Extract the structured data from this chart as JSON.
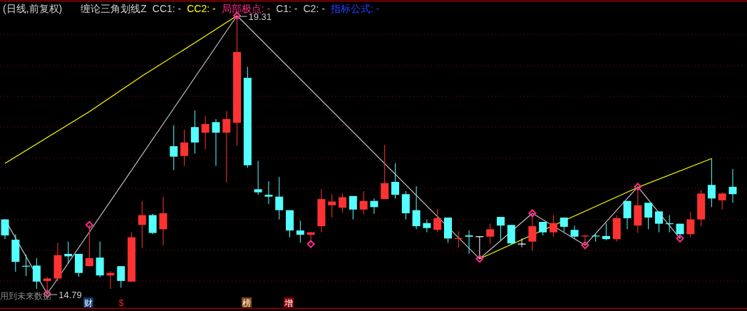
{
  "chart_data": {
    "type": "candlestick",
    "title": "(日线,前复权)",
    "categories": [
      null,
      null,
      null,
      null,
      null,
      null,
      null,
      null,
      null,
      null,
      null,
      null,
      null,
      null,
      null,
      null,
      null,
      null,
      null,
      null,
      null,
      null,
      null,
      null,
      null,
      null,
      null,
      null,
      null,
      null,
      null,
      null,
      null,
      null,
      null,
      null,
      null,
      null,
      null,
      null,
      null,
      null,
      null,
      null,
      null,
      null,
      null,
      null,
      null,
      null,
      null,
      null,
      null,
      null,
      null,
      null,
      null,
      null,
      null,
      null,
      null,
      null,
      null,
      null,
      null,
      null,
      null,
      null,
      null,
      null
    ],
    "ohlc": [
      [
        16.0,
        16.0,
        15.68,
        15.74
      ],
      [
        15.67,
        15.76,
        15.15,
        15.31
      ],
      [
        15.24,
        15.43,
        15.08,
        15.24
      ],
      [
        15.25,
        15.37,
        14.87,
        14.99
      ],
      [
        15.0,
        15.07,
        14.79,
        15.04
      ],
      [
        15.04,
        15.62,
        14.99,
        15.42
      ],
      [
        15.44,
        15.64,
        15.28,
        15.4
      ],
      [
        15.44,
        15.44,
        15.07,
        15.13
      ],
      [
        15.24,
        15.91,
        15.24,
        15.37
      ],
      [
        15.38,
        15.64,
        15.06,
        15.09
      ],
      [
        15.09,
        15.16,
        14.87,
        15.13
      ],
      [
        15.24,
        15.24,
        14.89,
        15.0
      ],
      [
        14.99,
        15.79,
        14.99,
        15.71
      ],
      [
        15.91,
        16.3,
        15.54,
        16.07
      ],
      [
        16.07,
        16.09,
        15.76,
        15.78
      ],
      [
        15.84,
        16.37,
        15.58,
        16.1
      ],
      [
        17.19,
        17.53,
        16.8,
        17.02
      ],
      [
        17.03,
        17.46,
        16.87,
        17.25
      ],
      [
        17.5,
        17.77,
        17.07,
        17.25
      ],
      [
        17.41,
        17.68,
        17.14,
        17.55
      ],
      [
        17.58,
        17.63,
        16.87,
        17.41
      ],
      [
        17.41,
        17.76,
        16.6,
        17.63
      ],
      [
        17.57,
        19.31,
        17.2,
        18.72
      ],
      [
        18.3,
        18.48,
        16.84,
        16.88
      ],
      [
        16.49,
        16.95,
        16.4,
        16.44
      ],
      [
        16.4,
        16.62,
        16.25,
        16.37
      ],
      [
        16.37,
        16.69,
        16.0,
        16.15
      ],
      [
        16.15,
        16.15,
        15.71,
        15.82
      ],
      [
        15.82,
        15.98,
        15.62,
        15.75
      ],
      [
        15.75,
        15.8,
        15.6,
        15.79
      ],
      [
        15.89,
        16.49,
        15.79,
        16.33
      ],
      [
        16.23,
        16.41,
        16.03,
        16.29
      ],
      [
        16.19,
        16.42,
        16.11,
        16.36
      ],
      [
        16.38,
        16.38,
        16.0,
        16.16
      ],
      [
        16.16,
        16.46,
        16.08,
        16.3
      ],
      [
        16.3,
        16.34,
        16.09,
        16.2
      ],
      [
        16.33,
        17.21,
        16.33,
        16.59
      ],
      [
        16.61,
        16.91,
        16.34,
        16.4
      ],
      [
        16.41,
        16.46,
        16.0,
        16.1
      ],
      [
        16.15,
        16.54,
        15.84,
        15.89
      ],
      [
        15.94,
        16.0,
        15.79,
        15.86
      ],
      [
        15.83,
        16.17,
        15.79,
        16.02
      ],
      [
        16.03,
        16.03,
        15.62,
        15.69
      ],
      [
        15.69,
        15.81,
        15.54,
        15.69
      ],
      [
        15.74,
        15.82,
        15.44,
        15.72
      ],
      [
        15.72,
        15.72,
        15.36,
        15.72
      ],
      [
        15.72,
        15.93,
        15.6,
        15.84
      ],
      [
        16.04,
        16.04,
        15.66,
        15.9
      ],
      [
        15.91,
        15.91,
        15.59,
        15.61
      ],
      [
        15.6,
        15.69,
        15.55,
        15.6
      ],
      [
        15.64,
        16.1,
        15.49,
        15.89
      ],
      [
        15.96,
        15.96,
        15.74,
        15.79
      ],
      [
        15.79,
        16.07,
        15.72,
        15.94
      ],
      [
        16.03,
        16.03,
        15.8,
        15.88
      ],
      [
        15.83,
        15.9,
        15.69,
        15.72
      ],
      [
        15.73,
        15.75,
        15.58,
        15.73
      ],
      [
        15.73,
        15.76,
        15.64,
        15.73
      ],
      [
        15.73,
        15.94,
        15.66,
        15.68
      ],
      [
        15.68,
        16.07,
        15.64,
        16.02
      ],
      [
        16.3,
        16.3,
        15.84,
        16.02
      ],
      [
        15.9,
        16.53,
        15.78,
        16.23
      ],
      [
        16.27,
        16.27,
        15.84,
        16.03
      ],
      [
        16.13,
        16.13,
        15.79,
        15.93
      ],
      [
        15.93,
        16.07,
        15.79,
        15.93
      ],
      [
        15.93,
        15.93,
        15.69,
        15.76
      ],
      [
        15.76,
        16.12,
        15.71,
        16.0
      ],
      [
        16.0,
        16.48,
        15.89,
        16.42
      ],
      [
        16.56,
        16.99,
        16.2,
        16.34
      ],
      [
        16.31,
        16.44,
        16.16,
        16.42
      ],
      [
        16.53,
        16.82,
        16.27,
        16.41
      ]
    ],
    "colors": [
      "#54ffff",
      "#54ffff",
      "#54ffff",
      "#54ffff",
      "#ff3232",
      "#ff3232",
      "#54ffff",
      "#54ffff",
      "#ff3232",
      "#54ffff",
      "#ff3232",
      "#54ffff",
      "#ff3232",
      "#ff3232",
      "#54ffff",
      "#ff3232",
      "#54ffff",
      "#ff3232",
      "#54ffff",
      "#ff3232",
      "#54ffff",
      "#ff3232",
      "#ff3232",
      "#54ffff",
      "#54ffff",
      "#54ffff",
      "#54ffff",
      "#54ffff",
      "#54ffff",
      "#ff3232",
      "#ff3232",
      "#ff3232",
      "#ff3232",
      "#54ffff",
      "#ff3232",
      "#54ffff",
      "#ff3232",
      "#54ffff",
      "#54ffff",
      "#54ffff",
      "#54ffff",
      "#ff3232",
      "#54ffff",
      "#ff3232",
      "#54ffff",
      "#ffffff",
      "#ff3232",
      "#54ffff",
      "#54ffff",
      "#ffffff",
      "#ff3232",
      "#54ffff",
      "#ff3232",
      "#54ffff",
      "#54ffff",
      "#ff3232",
      "#54ffff",
      "#54ffff",
      "#ff3232",
      "#54ffff",
      "#ff3232",
      "#54ffff",
      "#54ffff",
      "#54ffff",
      "#54ffff",
      "#ff3232",
      "#ff3232",
      "#54ffff",
      "#ff3232",
      "#54ffff"
    ],
    "yticks": [
      {
        "value": 15,
        "label": null
      },
      {
        "value": 15.5,
        "label": null
      },
      {
        "value": 16,
        "label": null
      },
      {
        "value": 16.5,
        "label": null
      },
      {
        "value": 17,
        "label": null
      },
      {
        "value": 17.5,
        "label": null
      },
      {
        "value": 18,
        "label": null
      },
      {
        "value": 18.5,
        "label": null
      },
      {
        "value": 19,
        "label": null
      }
    ],
    "grid": "y",
    "legend": "top left",
    "series": [
      {
        "name": "CC2: -",
        "type": "line",
        "color": "#ffff00",
        "values": [
          16.91,
          null,
          null,
          null,
          null,
          null,
          null,
          null,
          17.75,
          null,
          null,
          null,
          null,
          18.33,
          null,
          null,
          null,
          null,
          18.87,
          null,
          null,
          null,
          19.31,
          null,
          null,
          null,
          null,
          null,
          null,
          null,
          null,
          null,
          null,
          null,
          null,
          null,
          null,
          null,
          null,
          null,
          null,
          null,
          null,
          null,
          null,
          null,
          null,
          null,
          null,
          null,
          null,
          null,
          null,
          null,
          null,
          null,
          null,
          null,
          null,
          null,
          null,
          null,
          null,
          null,
          null,
          null,
          null,
          null,
          null,
          null
        ]
      },
      {
        "type": "line",
        "color": "#ffff00",
        "values": [
          null,
          null,
          null,
          null,
          null,
          null,
          null,
          null,
          null,
          null,
          null,
          null,
          null,
          null,
          null,
          null,
          null,
          null,
          null,
          null,
          null,
          null,
          null,
          null,
          null,
          null,
          null,
          null,
          null,
          null,
          null,
          null,
          null,
          null,
          null,
          null,
          null,
          null,
          null,
          null,
          null,
          null,
          null,
          null,
          null,
          15.36,
          null,
          null,
          null,
          null,
          null,
          null,
          null,
          null,
          null,
          null,
          null,
          null,
          null,
          null,
          16.52,
          null,
          null,
          null,
          null,
          null,
          null,
          16.99,
          null,
          null
        ]
      },
      {
        "type": "line",
        "color": "#c0c0c0",
        "values": [
          16.0,
          null,
          null,
          null,
          14.79,
          null,
          null,
          null,
          null,
          null,
          null,
          null,
          null,
          null,
          null,
          null,
          null,
          null,
          null,
          null,
          null,
          null,
          19.31,
          null,
          null,
          null,
          null,
          null,
          null,
          null,
          null,
          null,
          null,
          null,
          null,
          null,
          null,
          null,
          null,
          null,
          null,
          null,
          null,
          null,
          null,
          15.36,
          null,
          null,
          null,
          null,
          16.1,
          null,
          null,
          null,
          null,
          15.58,
          null,
          null,
          null,
          null,
          16.53,
          null,
          null,
          null,
          15.69,
          null,
          null,
          null,
          null,
          null
        ]
      },
      {
        "name": "局部极点: -",
        "type": "scatter",
        "marker": "diamond",
        "color": "#ff2a8a",
        "values": [
          null,
          null,
          null,
          null,
          14.79,
          null,
          null,
          null,
          15.91,
          null,
          null,
          null,
          null,
          null,
          null,
          null,
          null,
          null,
          null,
          null,
          null,
          null,
          19.31,
          null,
          null,
          null,
          null,
          null,
          null,
          15.6,
          null,
          null,
          null,
          null,
          null,
          null,
          null,
          null,
          null,
          null,
          null,
          null,
          null,
          null,
          null,
          15.36,
          null,
          null,
          null,
          null,
          16.1,
          null,
          null,
          null,
          null,
          15.58,
          null,
          null,
          null,
          null,
          16.53,
          null,
          null,
          null,
          15.69,
          null,
          null,
          null,
          null,
          null
        ]
      }
    ],
    "annotations": [
      "缠论三角划线Z",
      "CC1: -",
      "C1: -",
      "C2: -",
      "指标公式: -",
      "19.31",
      "14.79",
      "用到未来数据",
      "财",
      "$",
      "榜",
      "增"
    ]
  }
}
